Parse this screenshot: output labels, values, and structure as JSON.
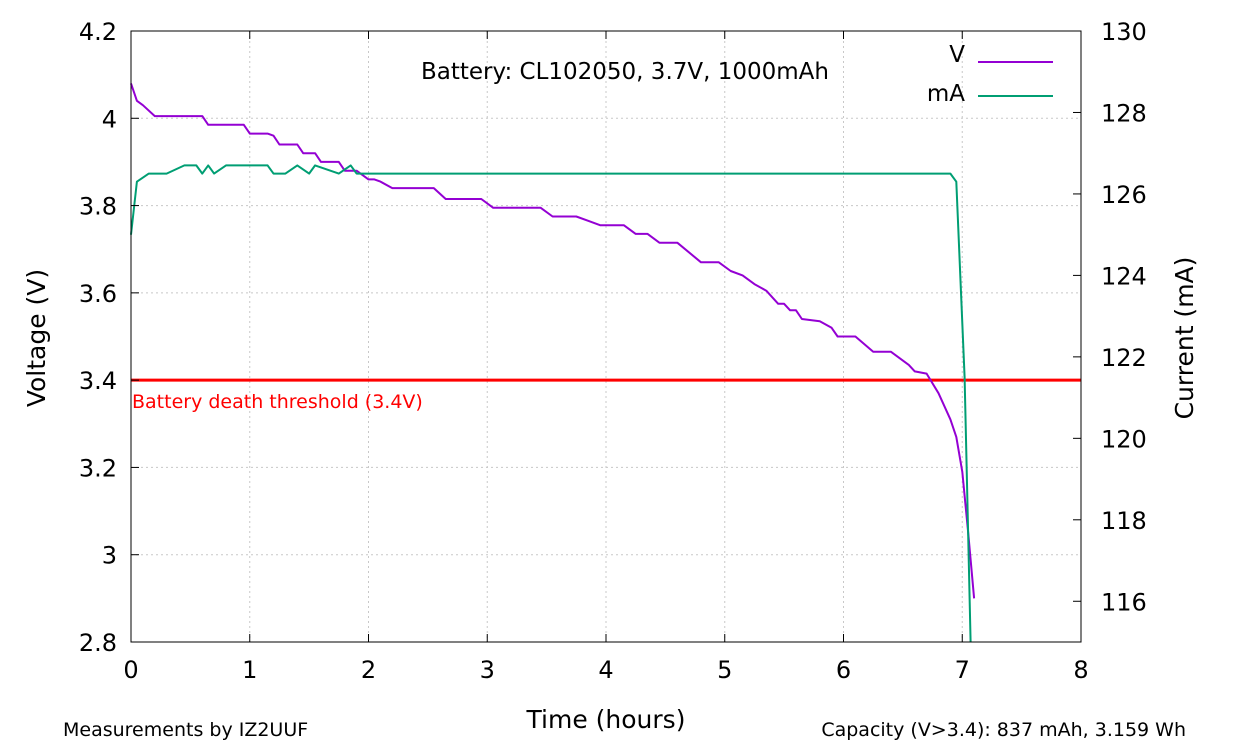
{
  "chart_data": {
    "type": "line",
    "title": "Battery: CL102050, 3.7V, 1000mAh",
    "xlabel": "Time (hours)",
    "ylabel": "Voltage (V)",
    "y2label": "Current (mA)",
    "xlim": [
      0,
      8
    ],
    "ylim": [
      2.8,
      4.2
    ],
    "y2lim": [
      115,
      130
    ],
    "x_ticks": [
      "0",
      "1",
      "2",
      "3",
      "4",
      "5",
      "6",
      "7",
      "8"
    ],
    "y_ticks": [
      "2.8",
      "3",
      "3.2",
      "3.4",
      "3.6",
      "3.8",
      "4",
      "4.2"
    ],
    "y2_ticks": [
      "116",
      "118",
      "120",
      "122",
      "124",
      "126",
      "128",
      "130"
    ],
    "grid": true,
    "legend_position": "top-right",
    "series": [
      {
        "name": "V",
        "axis": "left",
        "color": "#9400d3",
        "points": [
          [
            0.0,
            4.08
          ],
          [
            0.05,
            4.04
          ],
          [
            0.1,
            4.03
          ],
          [
            0.2,
            4.005
          ],
          [
            0.3,
            4.005
          ],
          [
            0.4,
            4.005
          ],
          [
            0.5,
            4.005
          ],
          [
            0.6,
            4.005
          ],
          [
            0.65,
            3.985
          ],
          [
            0.75,
            3.985
          ],
          [
            0.9,
            3.985
          ],
          [
            0.95,
            3.985
          ],
          [
            1.0,
            3.965
          ],
          [
            1.15,
            3.965
          ],
          [
            1.2,
            3.96
          ],
          [
            1.25,
            3.94
          ],
          [
            1.4,
            3.94
          ],
          [
            1.45,
            3.92
          ],
          [
            1.55,
            3.92
          ],
          [
            1.6,
            3.9
          ],
          [
            1.75,
            3.9
          ],
          [
            1.8,
            3.88
          ],
          [
            1.9,
            3.88
          ],
          [
            2.0,
            3.86
          ],
          [
            2.05,
            3.86
          ],
          [
            2.1,
            3.855
          ],
          [
            2.2,
            3.84
          ],
          [
            2.4,
            3.84
          ],
          [
            2.55,
            3.84
          ],
          [
            2.65,
            3.815
          ],
          [
            2.8,
            3.815
          ],
          [
            2.95,
            3.815
          ],
          [
            3.05,
            3.795
          ],
          [
            3.2,
            3.795
          ],
          [
            3.45,
            3.795
          ],
          [
            3.55,
            3.775
          ],
          [
            3.75,
            3.775
          ],
          [
            3.85,
            3.765
          ],
          [
            3.95,
            3.755
          ],
          [
            4.15,
            3.755
          ],
          [
            4.25,
            3.735
          ],
          [
            4.35,
            3.735
          ],
          [
            4.45,
            3.715
          ],
          [
            4.6,
            3.715
          ],
          [
            4.8,
            3.67
          ],
          [
            4.95,
            3.67
          ],
          [
            5.05,
            3.65
          ],
          [
            5.15,
            3.64
          ],
          [
            5.25,
            3.62
          ],
          [
            5.35,
            3.605
          ],
          [
            5.45,
            3.575
          ],
          [
            5.5,
            3.575
          ],
          [
            5.55,
            3.56
          ],
          [
            5.6,
            3.56
          ],
          [
            5.65,
            3.54
          ],
          [
            5.8,
            3.535
          ],
          [
            5.9,
            3.52
          ],
          [
            5.95,
            3.5
          ],
          [
            6.1,
            3.5
          ],
          [
            6.25,
            3.465
          ],
          [
            6.4,
            3.465
          ],
          [
            6.55,
            3.435
          ],
          [
            6.6,
            3.42
          ],
          [
            6.7,
            3.415
          ],
          [
            6.8,
            3.37
          ],
          [
            6.9,
            3.31
          ],
          [
            6.95,
            3.27
          ],
          [
            7.0,
            3.19
          ],
          [
            7.05,
            3.05
          ],
          [
            7.1,
            2.9
          ]
        ]
      },
      {
        "name": "mA",
        "axis": "right",
        "color": "#009e73",
        "points": [
          [
            0.0,
            125.0
          ],
          [
            0.05,
            126.3
          ],
          [
            0.15,
            126.5
          ],
          [
            0.3,
            126.5
          ],
          [
            0.45,
            126.7
          ],
          [
            0.55,
            126.7
          ],
          [
            0.6,
            126.5
          ],
          [
            0.65,
            126.7
          ],
          [
            0.7,
            126.5
          ],
          [
            0.8,
            126.7
          ],
          [
            0.95,
            126.7
          ],
          [
            1.1,
            126.7
          ],
          [
            1.15,
            126.7
          ],
          [
            1.2,
            126.5
          ],
          [
            1.3,
            126.5
          ],
          [
            1.4,
            126.7
          ],
          [
            1.5,
            126.5
          ],
          [
            1.55,
            126.7
          ],
          [
            1.75,
            126.5
          ],
          [
            1.85,
            126.7
          ],
          [
            1.9,
            126.5
          ],
          [
            2.0,
            126.5
          ],
          [
            3.0,
            126.5
          ],
          [
            4.0,
            126.5
          ],
          [
            5.0,
            126.5
          ],
          [
            6.0,
            126.5
          ],
          [
            6.9,
            126.5
          ],
          [
            6.95,
            126.3
          ],
          [
            7.02,
            121.5
          ],
          [
            7.07,
            115.0
          ]
        ]
      }
    ],
    "reference_line": {
      "y": 3.4,
      "label": "Battery death threshold (3.4V)",
      "color": "#ff0000"
    }
  },
  "footer": {
    "left": "Measurements by IZ2UUF",
    "right": "Capacity (V>3.4): 837 mAh, 3.159 Wh"
  }
}
